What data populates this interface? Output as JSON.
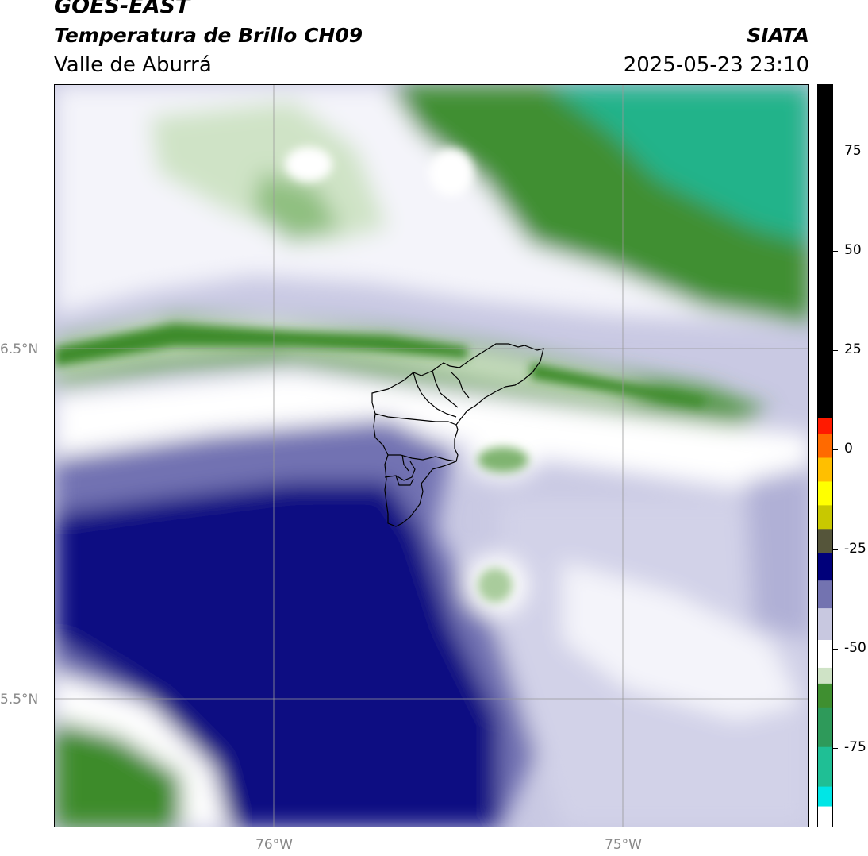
{
  "header": {
    "title": "GOES-EAST",
    "subtitle_product": "Temperatura de Brillo CH09",
    "region": "Valle de Aburrá",
    "organization": "SIATA",
    "datetime": "2025-05-23 23:10"
  },
  "map": {
    "lat_labels": [
      "6.5°N",
      "5.5°N"
    ],
    "lon_labels": [
      "76°W",
      "75°W"
    ],
    "gridlines": true
  },
  "colorbar": {
    "tick_labels": [
      "75",
      "50",
      "25",
      "0",
      "-25",
      "-50",
      "-75"
    ],
    "tick_values": [
      75,
      50,
      25,
      0,
      -25,
      -50,
      -75
    ],
    "range": [
      -95,
      92
    ],
    "segments": [
      {
        "from": -95,
        "to": -90,
        "color": "#ffffff"
      },
      {
        "from": -90,
        "to": -85,
        "color": "#00e6e6"
      },
      {
        "from": -85,
        "to": -75,
        "color": "#1fbf95"
      },
      {
        "from": -75,
        "to": -65,
        "color": "#2e9a5a"
      },
      {
        "from": -65,
        "to": -59,
        "color": "#3f8f30"
      },
      {
        "from": -59,
        "to": -55,
        "color": "#cfe3c6"
      },
      {
        "from": -55,
        "to": -48,
        "color": "#ffffff"
      },
      {
        "from": -48,
        "to": -40,
        "color": "#c8c8e0"
      },
      {
        "from": -40,
        "to": -33,
        "color": "#7373b0"
      },
      {
        "from": -33,
        "to": -26,
        "color": "#00007a"
      },
      {
        "from": -26,
        "to": -20,
        "color": "#55553a"
      },
      {
        "from": -20,
        "to": -14,
        "color": "#c8c800"
      },
      {
        "from": -14,
        "to": -8,
        "color": "#ffff00"
      },
      {
        "from": -8,
        "to": -2,
        "color": "#ffbf00"
      },
      {
        "from": -2,
        "to": 4,
        "color": "#ff6a00"
      },
      {
        "from": 4,
        "to": 8,
        "color": "#ff1a00"
      },
      {
        "from": 8,
        "to": 92,
        "color": "#000000"
      }
    ]
  },
  "colors": {
    "green_dark": "#3e8b2a",
    "green_teal": "#1fb38a",
    "green_pale": "#c9dec0",
    "white": "#ffffff",
    "lavender": "#c9c9e3",
    "blue_mid": "#6f6fb0",
    "navy": "#050578",
    "boundary": "#000000",
    "grid": "#999999"
  }
}
